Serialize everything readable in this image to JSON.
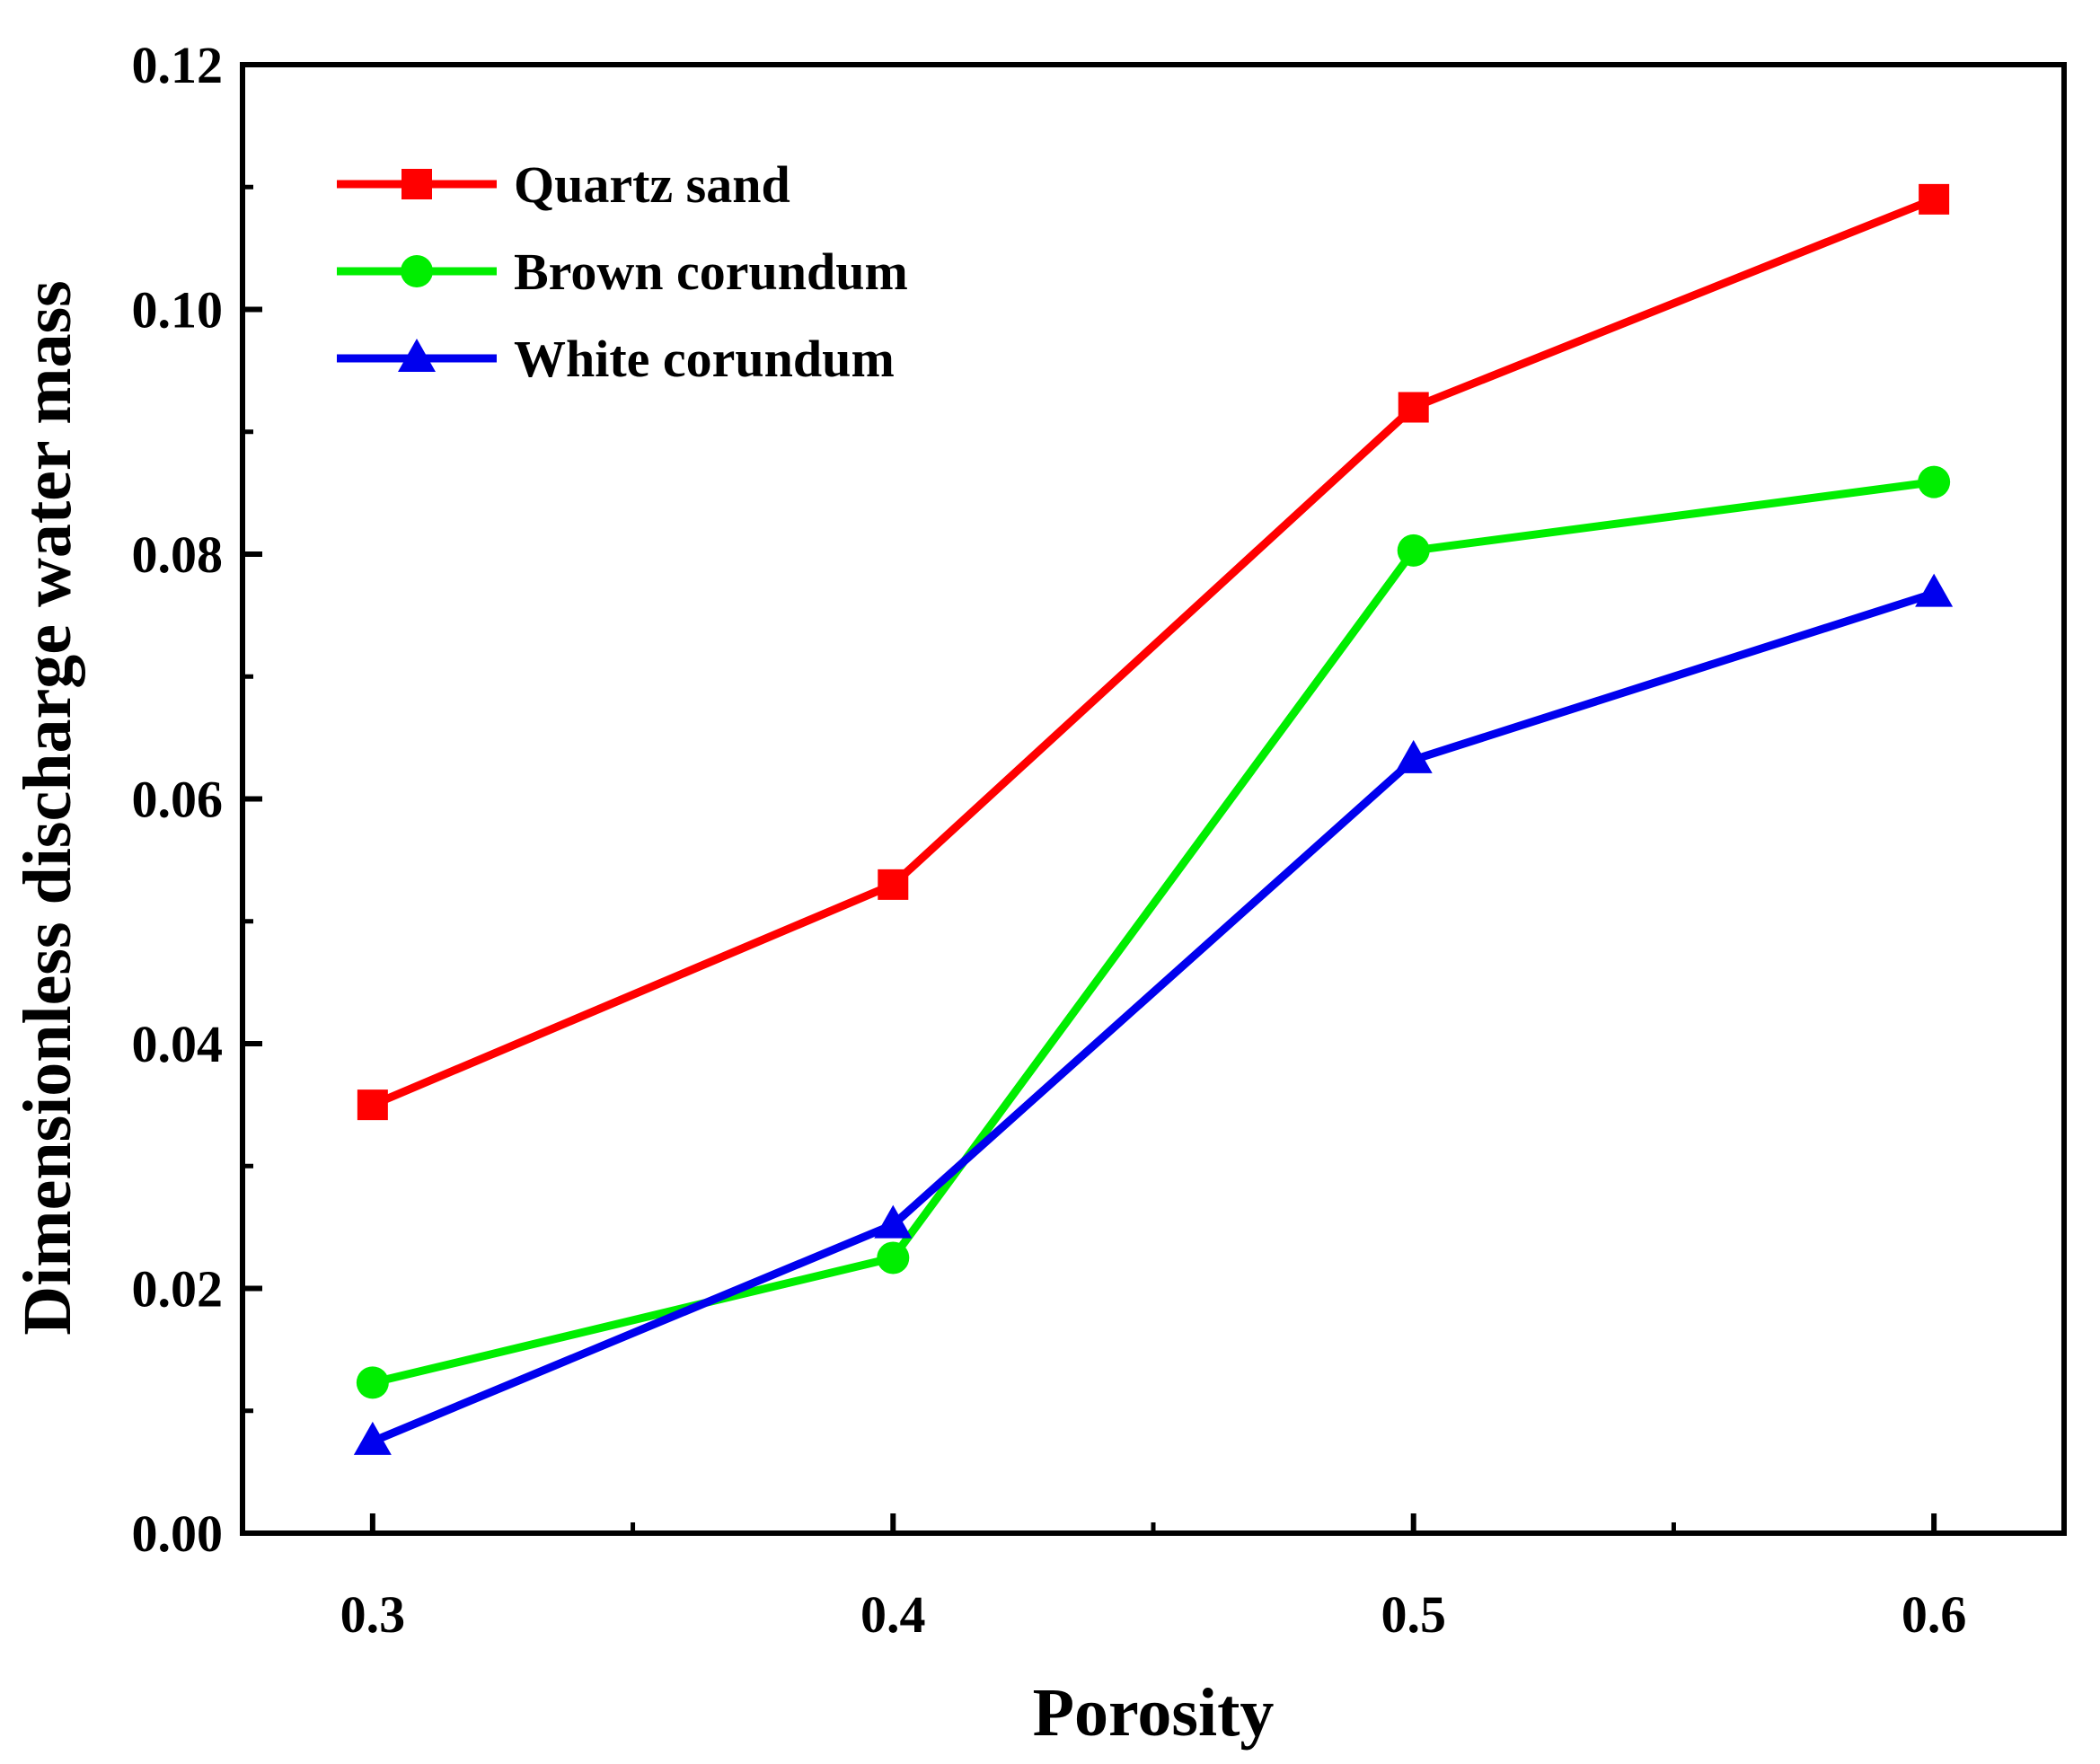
{
  "chart_data": {
    "type": "line",
    "xlabel": "Porosity",
    "ylabel": "Dimensionless discharge water mass",
    "x": [
      0.3,
      0.4,
      0.5,
      0.6
    ],
    "x_ticks": [
      "0.3",
      "0.4",
      "0.5",
      "0.6"
    ],
    "xlim": [
      0.275,
      0.625
    ],
    "y_ticks": [
      "0.00",
      "0.02",
      "0.04",
      "0.06",
      "0.08",
      "0.10",
      "0.12"
    ],
    "ylim": [
      0,
      0.12
    ],
    "grid": false,
    "legend_position": "top-left",
    "series": [
      {
        "name": "Quartz sand",
        "color": "#ff0000",
        "marker": "square",
        "values": [
          0.035,
          0.053,
          0.092,
          0.109
        ]
      },
      {
        "name": "Brown corundum",
        "color": "#00ee00",
        "marker": "circle",
        "values": [
          0.0123,
          0.0225,
          0.0803,
          0.0859
        ]
      },
      {
        "name": "White corundum",
        "color": "#0000ee",
        "marker": "triangle",
        "values": [
          0.0075,
          0.0252,
          0.0632,
          0.0768
        ]
      }
    ]
  }
}
